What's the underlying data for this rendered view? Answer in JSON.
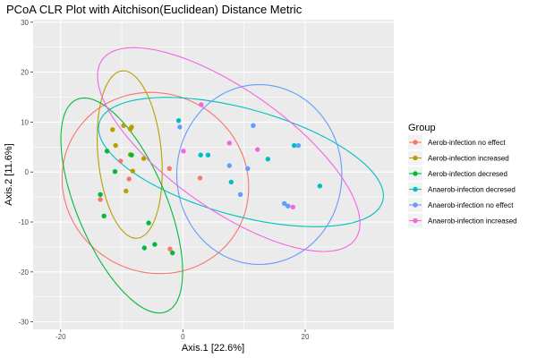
{
  "chart_data": {
    "type": "scatter",
    "title": "PCoA CLR Plot with Aitchison(Euclidean) Distance Metric",
    "xlabel": "Axis.1   [22.6%]",
    "ylabel": "Axis.2   [11.6%]",
    "xlim": [
      -24.5,
      34.5
    ],
    "ylim": [
      -31.5,
      30.5
    ],
    "xticks": [
      -20,
      0,
      20
    ],
    "yticks": [
      -30,
      -20,
      -10,
      0,
      10,
      20,
      30
    ],
    "grid": true,
    "legend": {
      "title": "Group",
      "position": "right"
    },
    "series": [
      {
        "name": "Aerob-infection no effect",
        "color": "#F8766D",
        "points": [
          [
            -13.5,
            -5.5
          ],
          [
            -10.2,
            2.2
          ],
          [
            -8.8,
            -1.4
          ],
          [
            -2.2,
            0.7
          ],
          [
            -2.1,
            -15.4
          ],
          [
            2.8,
            -1.2
          ],
          [
            3.0,
            13.5
          ]
        ],
        "ellipse": {
          "cx": -4.5,
          "cy": -2.2,
          "rx": 15.2,
          "ry": 18.2,
          "angle": 8
        }
      },
      {
        "name": "Aerob-infection increased",
        "color": "#B79F00",
        "points": [
          [
            -11.5,
            8.5
          ],
          [
            -11.0,
            5.3
          ],
          [
            -9.7,
            9.3
          ],
          [
            -9.3,
            -3.8
          ],
          [
            -8.6,
            3.5
          ],
          [
            -8.6,
            8.6
          ],
          [
            -8.4,
            9.0
          ],
          [
            -8.2,
            0.2
          ],
          [
            -6.4,
            2.7
          ]
        ],
        "ellipse": {
          "cx": -8.7,
          "cy": 3.5,
          "rx": 5.2,
          "ry": 16.8,
          "angle": 4
        }
      },
      {
        "name": "Aerob-infection decresed",
        "color": "#00BA38",
        "points": [
          [
            -13.5,
            -4.5
          ],
          [
            -12.9,
            -8.8
          ],
          [
            -12.4,
            4.2
          ],
          [
            -11.1,
            0.1
          ],
          [
            -8.4,
            3.4
          ],
          [
            -6.3,
            -15.2
          ],
          [
            -5.6,
            -10.2
          ],
          [
            -4.6,
            -14.5
          ],
          [
            -1.7,
            -16.2
          ]
        ],
        "ellipse": {
          "cx": -10.0,
          "cy": -6.7,
          "rx": 7.5,
          "ry": 22.5,
          "angle": 18
        }
      },
      {
        "name": "Anaerob-infection decresed",
        "color": "#00BFC4",
        "points": [
          [
            -0.7,
            10.3
          ],
          [
            2.9,
            3.4
          ],
          [
            4.1,
            3.4
          ],
          [
            7.9,
            -2.0
          ],
          [
            13.9,
            2.6
          ],
          [
            18.2,
            5.3
          ],
          [
            22.4,
            -2.8
          ]
        ],
        "ellipse": {
          "cx": 9.5,
          "cy": 2.0,
          "rx": 24.5,
          "ry": 10.5,
          "angle": -20
        }
      },
      {
        "name": "Anaerob-infection no effect",
        "color": "#619CFF",
        "points": [
          [
            -0.5,
            9.0
          ],
          [
            7.6,
            1.3
          ],
          [
            9.4,
            -4.5
          ],
          [
            10.6,
            0.7
          ],
          [
            11.5,
            9.3
          ],
          [
            16.6,
            -6.3
          ],
          [
            17.2,
            -6.8
          ],
          [
            18.9,
            5.3
          ]
        ],
        "ellipse": {
          "cx": 12.5,
          "cy": -0.5,
          "rx": 13.5,
          "ry": 18.0,
          "angle": 0
        }
      },
      {
        "name": "Anaerob-infection increased",
        "color": "#F564E3",
        "points": [
          [
            0.1,
            4.2
          ],
          [
            3.0,
            13.5
          ],
          [
            7.6,
            5.8
          ],
          [
            12.2,
            4.5
          ],
          [
            18.0,
            -7.0
          ]
        ],
        "ellipse": {
          "cx": 7.5,
          "cy": 4.5,
          "rx": 27.5,
          "ry": 11.0,
          "angle": -43
        }
      }
    ]
  }
}
